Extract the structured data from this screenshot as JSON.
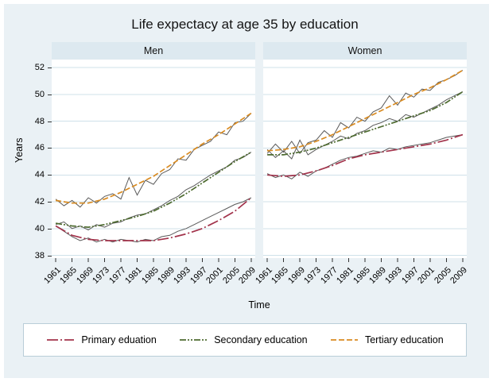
{
  "chart_data": {
    "type": "line",
    "title": "Life expectacy at age 35 by education",
    "xlabel": "Time",
    "ylabel": "Years",
    "ylim": [
      38,
      52
    ],
    "yticks": [
      38,
      40,
      42,
      44,
      46,
      48,
      50,
      52
    ],
    "xticks": [
      1961,
      1965,
      1969,
      1973,
      1977,
      1981,
      1985,
      1989,
      1993,
      1997,
      2001,
      2005,
      2009
    ],
    "x_raw": [
      1961,
      1963,
      1965,
      1967,
      1969,
      1971,
      1973,
      1975,
      1977,
      1979,
      1981,
      1983,
      1985,
      1987,
      1989,
      1991,
      1993,
      1995,
      1997,
      1999,
      2001,
      2003,
      2005,
      2007,
      2009
    ],
    "grid": true,
    "legend_position": "bottom",
    "colors": {
      "primary": "#A2334B",
      "secondary": "#4E6B30",
      "tertiary": "#D98B21",
      "raw": "#5a5a5a",
      "grid": "#cfe1ea",
      "background": "#eaf1f5",
      "band": "#dde9f0"
    },
    "panels": [
      {
        "label": "Men",
        "series": [
          {
            "name": "Primary eduation",
            "color": "#A2334B",
            "dash": "14 3 2 3",
            "trend": [
              40.2,
              39.5,
              39.2,
              39.1,
              39.1,
              39.1,
              39.1,
              39.3,
              39.6,
              40.0,
              40.6,
              41.3,
              42.3
            ],
            "raw": [
              40.2,
              39.8,
              39.4,
              39.1,
              39.3,
              39.0,
              39.2,
              39.0,
              39.2,
              39.1,
              39.0,
              39.2,
              39.1,
              39.4,
              39.5,
              39.8,
              40.0,
              40.3,
              40.6,
              40.9,
              41.2,
              41.5,
              41.8,
              42.0,
              42.3
            ]
          },
          {
            "name": "Secondary education",
            "color": "#4E6B30",
            "dash": "8 2 2 2 2 2",
            "trend": [
              40.4,
              40.2,
              40.1,
              40.3,
              40.6,
              40.9,
              41.3,
              41.9,
              42.6,
              43.4,
              44.2,
              45.0,
              45.7
            ],
            "raw": [
              40.3,
              40.5,
              40.0,
              40.2,
              39.9,
              40.3,
              40.1,
              40.4,
              40.5,
              40.8,
              41.0,
              41.1,
              41.4,
              41.7,
              42.1,
              42.4,
              42.9,
              43.2,
              43.6,
              44.0,
              44.3,
              44.6,
              45.1,
              45.3,
              45.7
            ]
          },
          {
            "name": "Tertiary education",
            "color": "#D98B21",
            "dash": "7 3",
            "trend": [
              42.1,
              41.9,
              41.9,
              42.2,
              42.7,
              43.3,
              43.9,
              44.7,
              45.5,
              46.3,
              47.0,
              47.8,
              48.6
            ],
            "raw": [
              42.2,
              41.7,
              42.1,
              41.6,
              42.3,
              41.9,
              42.4,
              42.6,
              42.2,
              43.8,
              42.5,
              43.6,
              43.3,
              44.1,
              44.4,
              45.2,
              45.1,
              45.9,
              46.2,
              46.5,
              47.2,
              47.0,
              47.9,
              48.0,
              48.6
            ]
          }
        ]
      },
      {
        "label": "Women",
        "series": [
          {
            "name": "Primary eduation",
            "color": "#A2334B",
            "dash": "14 3 2 3",
            "trend": [
              44.0,
              43.9,
              44.0,
              44.3,
              44.7,
              45.2,
              45.5,
              45.7,
              45.9,
              46.1,
              46.3,
              46.6,
              47.0
            ],
            "raw": [
              44.1,
              43.8,
              44.0,
              43.7,
              44.2,
              43.9,
              44.3,
              44.5,
              44.8,
              45.1,
              45.3,
              45.4,
              45.6,
              45.8,
              45.7,
              46.0,
              45.9,
              46.1,
              46.2,
              46.3,
              46.4,
              46.6,
              46.8,
              46.9,
              47.0
            ]
          },
          {
            "name": "Secondary education",
            "color": "#4E6B30",
            "dash": "8 2 2 2 2 2",
            "trend": [
              45.5,
              45.5,
              45.7,
              46.0,
              46.4,
              46.8,
              47.2,
              47.6,
              48.0,
              48.4,
              48.8,
              49.4,
              50.2
            ],
            "raw": [
              45.9,
              45.3,
              45.8,
              45.2,
              46.6,
              45.5,
              45.9,
              46.2,
              46.5,
              46.9,
              46.7,
              47.1,
              47.3,
              47.7,
              47.9,
              48.2,
              48.0,
              48.5,
              48.3,
              48.6,
              48.9,
              49.2,
              49.6,
              49.9,
              50.2
            ]
          },
          {
            "name": "Tertiary education",
            "color": "#D98B21",
            "dash": "7 3",
            "trend": [
              45.8,
              45.9,
              46.1,
              46.5,
              47.0,
              47.6,
              48.2,
              48.8,
              49.4,
              50.0,
              50.5,
              51.1,
              51.8
            ],
            "raw": [
              45.6,
              46.3,
              45.7,
              46.5,
              45.6,
              46.4,
              46.6,
              47.3,
              46.8,
              47.9,
              47.5,
              48.3,
              48.0,
              48.7,
              49.0,
              49.9,
              49.2,
              50.1,
              49.8,
              50.4,
              50.3,
              50.9,
              51.1,
              51.4,
              51.8
            ]
          }
        ]
      }
    ],
    "legend": [
      {
        "label": "Primary eduation",
        "color": "#A2334B",
        "dash": "14 3 2 3"
      },
      {
        "label": "Secondary education",
        "color": "#4E6B30",
        "dash": "8 2 2 2 2 2"
      },
      {
        "label": "Tertiary education",
        "color": "#D98B21",
        "dash": "7 3"
      }
    ]
  }
}
